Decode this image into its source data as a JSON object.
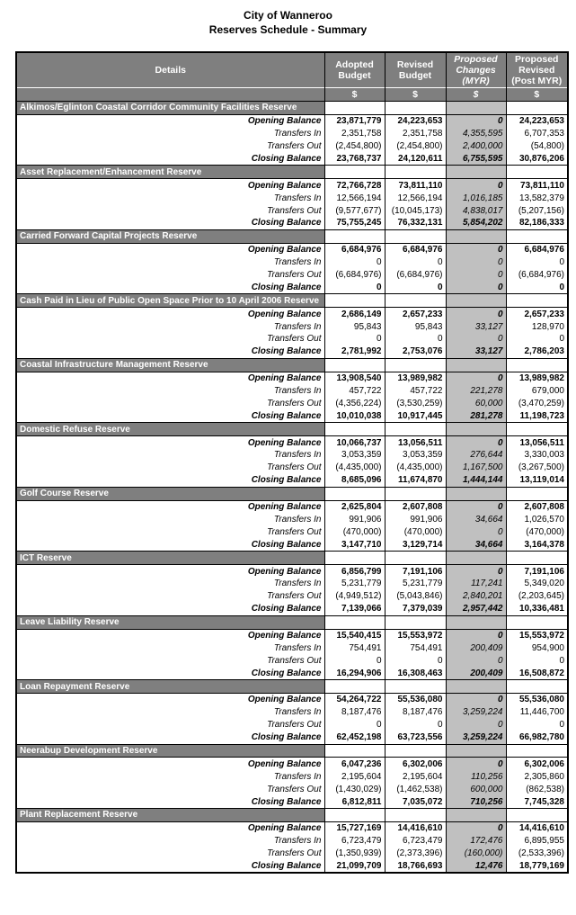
{
  "header": {
    "title": "City of Wanneroo",
    "subtitle": "Reserves Schedule - Summary"
  },
  "table": {
    "columns": [
      "Details",
      "Adopted Budget",
      "Revised Budget",
      "Proposed Changes (MYR)",
      "Proposed Revised (Post MYR)"
    ],
    "units": [
      "$",
      "$",
      "$",
      "$"
    ],
    "sections": [
      {
        "title": "Alkimos/Eglinton Coastal Corridor Community Facilities Reserve",
        "rows": [
          {
            "label": "Opening Balance",
            "values": [
              "23,871,779",
              "24,223,653",
              "0",
              "24,223,653"
            ]
          },
          {
            "label": "Transfers In",
            "values": [
              "2,351,758",
              "2,351,758",
              "4,355,595",
              "6,707,353"
            ]
          },
          {
            "label": "Transfers Out",
            "values": [
              "(2,454,800)",
              "(2,454,800)",
              "2,400,000",
              "(54,800)"
            ]
          },
          {
            "label": "Closing Balance",
            "values": [
              "23,768,737",
              "24,120,611",
              "6,755,595",
              "30,876,206"
            ]
          }
        ]
      },
      {
        "title": "Asset Replacement/Enhancement Reserve",
        "rows": [
          {
            "label": "Opening Balance",
            "values": [
              "72,766,728",
              "73,811,110",
              "0",
              "73,811,110"
            ]
          },
          {
            "label": "Transfers In",
            "values": [
              "12,566,194",
              "12,566,194",
              "1,016,185",
              "13,582,379"
            ]
          },
          {
            "label": "Transfers Out",
            "values": [
              "(9,577,677)",
              "(10,045,173)",
              "4,838,017",
              "(5,207,156)"
            ]
          },
          {
            "label": "Closing Balance",
            "values": [
              "75,755,245",
              "76,332,131",
              "5,854,202",
              "82,186,333"
            ]
          }
        ]
      },
      {
        "title": "Carried Forward Capital Projects Reserve",
        "rows": [
          {
            "label": "Opening Balance",
            "values": [
              "6,684,976",
              "6,684,976",
              "0",
              "6,684,976"
            ]
          },
          {
            "label": "Transfers In",
            "values": [
              "0",
              "0",
              "0",
              "0"
            ]
          },
          {
            "label": "Transfers Out",
            "values": [
              "(6,684,976)",
              "(6,684,976)",
              "0",
              "(6,684,976)"
            ]
          },
          {
            "label": "Closing Balance",
            "values": [
              "0",
              "0",
              "0",
              "0"
            ]
          }
        ]
      },
      {
        "title": "Cash Paid in Lieu of Public Open Space Prior to 10 April 2006 Reserve",
        "rows": [
          {
            "label": "Opening Balance",
            "values": [
              "2,686,149",
              "2,657,233",
              "0",
              "2,657,233"
            ]
          },
          {
            "label": "Transfers In",
            "values": [
              "95,843",
              "95,843",
              "33,127",
              "128,970"
            ]
          },
          {
            "label": "Transfers Out",
            "values": [
              "0",
              "0",
              "0",
              "0"
            ]
          },
          {
            "label": "Closing Balance",
            "values": [
              "2,781,992",
              "2,753,076",
              "33,127",
              "2,786,203"
            ]
          }
        ]
      },
      {
        "title": "Coastal Infrastructure Management Reserve",
        "rows": [
          {
            "label": "Opening Balance",
            "values": [
              "13,908,540",
              "13,989,982",
              "0",
              "13,989,982"
            ]
          },
          {
            "label": "Transfers In",
            "values": [
              "457,722",
              "457,722",
              "221,278",
              "679,000"
            ]
          },
          {
            "label": "Transfers Out",
            "values": [
              "(4,356,224)",
              "(3,530,259)",
              "60,000",
              "(3,470,259)"
            ]
          },
          {
            "label": "Closing Balance",
            "values": [
              "10,010,038",
              "10,917,445",
              "281,278",
              "11,198,723"
            ]
          }
        ]
      },
      {
        "title": "Domestic Refuse Reserve",
        "rows": [
          {
            "label": "Opening Balance",
            "values": [
              "10,066,737",
              "13,056,511",
              "0",
              "13,056,511"
            ]
          },
          {
            "label": "Transfers In",
            "values": [
              "3,053,359",
              "3,053,359",
              "276,644",
              "3,330,003"
            ]
          },
          {
            "label": "Transfers Out",
            "values": [
              "(4,435,000)",
              "(4,435,000)",
              "1,167,500",
              "(3,267,500)"
            ]
          },
          {
            "label": "Closing Balance",
            "values": [
              "8,685,096",
              "11,674,870",
              "1,444,144",
              "13,119,014"
            ]
          }
        ]
      },
      {
        "title": "Golf Course Reserve",
        "rows": [
          {
            "label": "Opening Balance",
            "values": [
              "2,625,804",
              "2,607,808",
              "0",
              "2,607,808"
            ]
          },
          {
            "label": "Transfers In",
            "values": [
              "991,906",
              "991,906",
              "34,664",
              "1,026,570"
            ]
          },
          {
            "label": "Transfers Out",
            "values": [
              "(470,000)",
              "(470,000)",
              "0",
              "(470,000)"
            ]
          },
          {
            "label": "Closing Balance",
            "values": [
              "3,147,710",
              "3,129,714",
              "34,664",
              "3,164,378"
            ]
          }
        ]
      },
      {
        "title": "ICT Reserve",
        "rows": [
          {
            "label": "Opening Balance",
            "values": [
              "6,856,799",
              "7,191,106",
              "0",
              "7,191,106"
            ]
          },
          {
            "label": "Transfers In",
            "values": [
              "5,231,779",
              "5,231,779",
              "117,241",
              "5,349,020"
            ]
          },
          {
            "label": "Transfers Out",
            "values": [
              "(4,949,512)",
              "(5,043,846)",
              "2,840,201",
              "(2,203,645)"
            ]
          },
          {
            "label": "Closing Balance",
            "values": [
              "7,139,066",
              "7,379,039",
              "2,957,442",
              "10,336,481"
            ]
          }
        ]
      },
      {
        "title": "Leave Liability Reserve",
        "rows": [
          {
            "label": "Opening Balance",
            "values": [
              "15,540,415",
              "15,553,972",
              "0",
              "15,553,972"
            ]
          },
          {
            "label": "Transfers In",
            "values": [
              "754,491",
              "754,491",
              "200,409",
              "954,900"
            ]
          },
          {
            "label": "Transfers Out",
            "values": [
              "0",
              "0",
              "0",
              "0"
            ]
          },
          {
            "label": "Closing Balance",
            "values": [
              "16,294,906",
              "16,308,463",
              "200,409",
              "16,508,872"
            ]
          }
        ]
      },
      {
        "title": "Loan Repayment Reserve",
        "rows": [
          {
            "label": "Opening Balance",
            "values": [
              "54,264,722",
              "55,536,080",
              "0",
              "55,536,080"
            ]
          },
          {
            "label": "Transfers In",
            "values": [
              "8,187,476",
              "8,187,476",
              "3,259,224",
              "11,446,700"
            ]
          },
          {
            "label": "Transfers Out",
            "values": [
              "0",
              "0",
              "0",
              "0"
            ]
          },
          {
            "label": "Closing Balance",
            "values": [
              "62,452,198",
              "63,723,556",
              "3,259,224",
              "66,982,780"
            ]
          }
        ]
      },
      {
        "title": "Neerabup Development Reserve",
        "rows": [
          {
            "label": "Opening Balance",
            "values": [
              "6,047,236",
              "6,302,006",
              "0",
              "6,302,006"
            ]
          },
          {
            "label": "Transfers In",
            "values": [
              "2,195,604",
              "2,195,604",
              "110,256",
              "2,305,860"
            ]
          },
          {
            "label": "Transfers Out",
            "values": [
              "(1,430,029)",
              "(1,462,538)",
              "600,000",
              "(862,538)"
            ]
          },
          {
            "label": "Closing Balance",
            "values": [
              "6,812,811",
              "7,035,072",
              "710,256",
              "7,745,328"
            ]
          }
        ]
      },
      {
        "title": "Plant Replacement Reserve",
        "rows": [
          {
            "label": "Opening Balance",
            "values": [
              "15,727,169",
              "14,416,610",
              "0",
              "14,416,610"
            ]
          },
          {
            "label": "Transfers In",
            "values": [
              "6,723,479",
              "6,723,479",
              "172,476",
              "6,895,955"
            ]
          },
          {
            "label": "Transfers Out",
            "values": [
              "(1,350,939)",
              "(2,373,396)",
              "(160,000)",
              "(2,533,396)"
            ]
          },
          {
            "label": "Closing Balance",
            "values": [
              "21,099,709",
              "18,766,693",
              "12,476",
              "18,779,169"
            ]
          }
        ]
      }
    ]
  }
}
